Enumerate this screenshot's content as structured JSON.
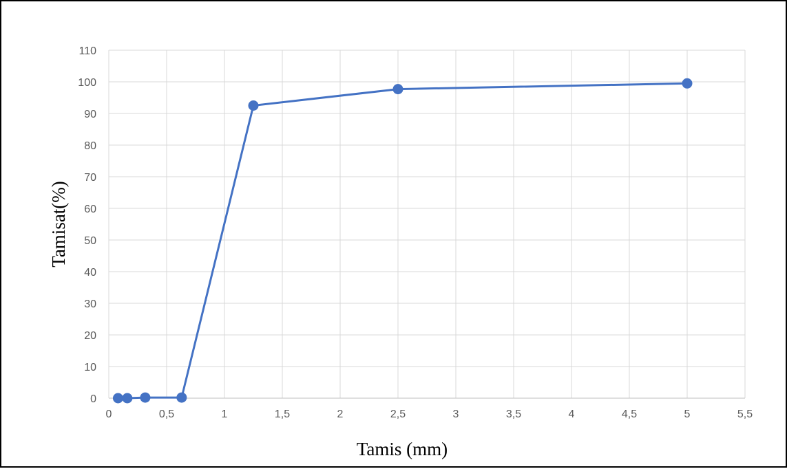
{
  "chart_data": {
    "type": "line",
    "title": "",
    "xlabel": "Tamis (mm)",
    "ylabel": "Tamisat(%)",
    "xlim": [
      0,
      5.5
    ],
    "ylim": [
      0,
      110
    ],
    "x_ticks": [
      0,
      0.5,
      1,
      1.5,
      2,
      2.5,
      3,
      3.5,
      4,
      4.5,
      5,
      5.5
    ],
    "x_tick_labels": [
      "0",
      "0,5",
      "1",
      "1,5",
      "2",
      "2,5",
      "3",
      "3,5",
      "4",
      "4,5",
      "5",
      "5,5"
    ],
    "y_ticks": [
      0,
      10,
      20,
      30,
      40,
      50,
      60,
      70,
      80,
      90,
      100,
      110
    ],
    "y_tick_labels": [
      "0",
      "10",
      "20",
      "30",
      "40",
      "50",
      "60",
      "70",
      "80",
      "90",
      "100",
      "110"
    ],
    "grid": true,
    "legend": "none",
    "series": [
      {
        "color": "#4472C4",
        "marker": "circle",
        "x": [
          0.08,
          0.16,
          0.315,
          0.63,
          1.25,
          2.5,
          5
        ],
        "y": [
          0,
          0,
          0.2,
          0.2,
          92.5,
          97.7,
          99.5
        ]
      }
    ]
  }
}
